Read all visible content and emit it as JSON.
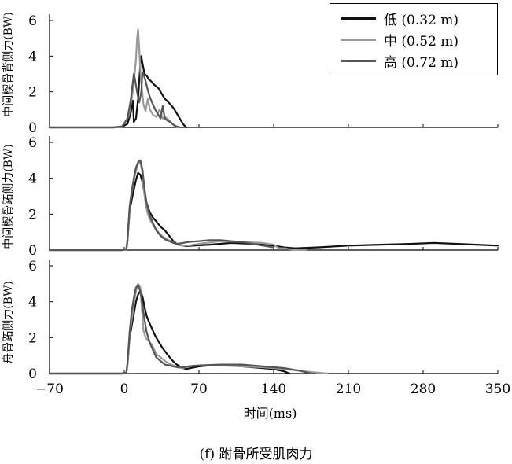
{
  "chart_data": [
    {
      "type": "line",
      "panel": "top",
      "ylabel": "中间楔骨背侧力(BW)",
      "xlim": [
        -70,
        350
      ],
      "ylim": [
        0,
        6
      ],
      "yticks": [
        0,
        2,
        4,
        6
      ],
      "series": [
        {
          "name": "低  (0.32 m)",
          "color": "#111111",
          "x": [
            -70,
            -10,
            -2,
            3,
            6,
            8,
            9,
            11,
            13,
            14,
            15,
            16,
            17,
            19,
            21,
            23,
            25,
            28,
            32,
            35,
            38,
            40,
            43,
            46,
            50,
            55,
            58
          ],
          "y": [
            0,
            0,
            0.05,
            0.2,
            0.8,
            1.5,
            0.3,
            0.5,
            1.6,
            2.6,
            3.5,
            4.0,
            3.6,
            3.0,
            2.9,
            2.7,
            2.6,
            2.4,
            2.2,
            1.9,
            1.6,
            1.5,
            1.3,
            1.1,
            0.7,
            0.2,
            0
          ]
        },
        {
          "name": "中  (0.52 m)",
          "color": "#9a9a9a",
          "x": [
            -70,
            -10,
            -2,
            4,
            7,
            9,
            11,
            12,
            13,
            14,
            15,
            16,
            18,
            20,
            22,
            24,
            27,
            30,
            33,
            36,
            38,
            40,
            42,
            45,
            50
          ],
          "y": [
            0,
            0,
            0.05,
            0.6,
            1.6,
            2.5,
            3.8,
            5.0,
            5.5,
            4.5,
            3.2,
            2.5,
            1.3,
            0.9,
            1.6,
            1.0,
            0.7,
            0.6,
            1.0,
            0.5,
            0.6,
            0.5,
            0.4,
            0.2,
            0
          ]
        },
        {
          "name": "高  (0.72 m)",
          "color": "#555555",
          "x": [
            -70,
            -10,
            -2,
            3,
            6,
            8,
            9,
            10,
            12,
            14,
            16,
            17,
            18,
            20,
            22,
            24,
            26,
            29,
            32,
            34,
            36,
            38,
            40,
            43,
            47,
            52
          ],
          "y": [
            0,
            0,
            0.05,
            0.5,
            1.5,
            2.5,
            3.0,
            2.7,
            2.0,
            1.4,
            2.0,
            3.1,
            3.0,
            2.6,
            2.1,
            1.7,
            1.4,
            1.0,
            0.7,
            0.5,
            1.2,
            0.5,
            0.4,
            0.3,
            0.1,
            0
          ]
        }
      ]
    },
    {
      "type": "line",
      "panel": "middle",
      "ylabel": "中间楔骨跖侧力(BW)",
      "xlim": [
        -70,
        350
      ],
      "ylim": [
        0,
        6
      ],
      "yticks": [
        0,
        2,
        4,
        6
      ],
      "series": [
        {
          "name": "低  (0.32 m)",
          "color": "#111111",
          "x": [
            -70,
            -2,
            2,
            3,
            5,
            8,
            11,
            13,
            15,
            17,
            19,
            21,
            24,
            27,
            30,
            34,
            38,
            42,
            46,
            50,
            55,
            58,
            65,
            80,
            100,
            120,
            140,
            150,
            160,
            180,
            210,
            240,
            270,
            290,
            310,
            330,
            350
          ],
          "y": [
            0,
            0,
            0.05,
            0.5,
            2.2,
            3.1,
            3.9,
            4.3,
            4.2,
            3.8,
            3.1,
            2.6,
            2.1,
            1.8,
            1.6,
            1.3,
            1.1,
            0.8,
            0.5,
            0.3,
            0.25,
            0.22,
            0.25,
            0.3,
            0.4,
            0.35,
            0.25,
            0.15,
            0.1,
            0.15,
            0.25,
            0.3,
            0.35,
            0.4,
            0.35,
            0.3,
            0.25
          ]
        },
        {
          "name": "中  (0.52 m)",
          "color": "#9a9a9a",
          "x": [
            -70,
            -2,
            2,
            3,
            5,
            7,
            9,
            11,
            13,
            15,
            17,
            18,
            20,
            22,
            25,
            28,
            32,
            35,
            40,
            45,
            50,
            55,
            60,
            70,
            90,
            110,
            130,
            140,
            145,
            150,
            155,
            160,
            170
          ],
          "y": [
            0,
            0,
            0.05,
            0.5,
            2.3,
            3.2,
            3.9,
            4.4,
            4.8,
            4.9,
            4.3,
            3.5,
            2.6,
            2.0,
            1.6,
            1.3,
            1.0,
            0.8,
            0.6,
            0.45,
            0.3,
            0.25,
            0.25,
            0.35,
            0.5,
            0.45,
            0.4,
            0.3,
            0.1,
            0.1,
            0.05,
            0.02,
            0
          ]
        },
        {
          "name": "高  (0.72 m)",
          "color": "#555555",
          "x": [
            -70,
            -2,
            2,
            3,
            5,
            7,
            9,
            11,
            13,
            15,
            17,
            19,
            21,
            24,
            27,
            30,
            34,
            38,
            42,
            46,
            50,
            55,
            60,
            70,
            80,
            90,
            100,
            110,
            120,
            130,
            140
          ],
          "y": [
            0,
            0,
            0.05,
            0.6,
            2.4,
            3.3,
            4.0,
            4.6,
            4.9,
            5.0,
            4.5,
            3.4,
            2.6,
            1.9,
            1.5,
            1.1,
            0.8,
            0.6,
            0.5,
            0.4,
            0.35,
            0.4,
            0.45,
            0.5,
            0.55,
            0.55,
            0.5,
            0.45,
            0.35,
            0.25,
            0.15
          ]
        }
      ]
    },
    {
      "type": "line",
      "panel": "bottom",
      "ylabel": "舟骨跖侧力(BW)",
      "xlim": [
        -70,
        350
      ],
      "ylim": [
        0,
        6
      ],
      "yticks": [
        0,
        2,
        4,
        6
      ],
      "xticks": [
        -70,
        0,
        70,
        140,
        210,
        280,
        350
      ],
      "series": [
        {
          "name": "低  (0.32 m)",
          "color": "#111111",
          "x": [
            -70,
            -2,
            2,
            3,
            5,
            8,
            11,
            13,
            15,
            17,
            19,
            21,
            23,
            26,
            29,
            32,
            36,
            40,
            44,
            48,
            52,
            55,
            58,
            62,
            70,
            80,
            100,
            120,
            140,
            150,
            155
          ],
          "y": [
            0,
            0,
            0.05,
            0.5,
            2.0,
            3.0,
            4.0,
            4.4,
            4.6,
            4.3,
            3.7,
            3.2,
            2.9,
            2.5,
            2.1,
            1.8,
            1.4,
            1.1,
            0.8,
            0.55,
            0.4,
            0.3,
            0.25,
            0.3,
            0.4,
            0.45,
            0.45,
            0.35,
            0.25,
            0.12,
            0
          ]
        },
        {
          "name": "中  (0.52 m)",
          "color": "#9a9a9a",
          "x": [
            -70,
            -2,
            2,
            3,
            5,
            7,
            9,
            11,
            13,
            15,
            16,
            17,
            18,
            20,
            23,
            26,
            30,
            34,
            38,
            42,
            46,
            50,
            55,
            60,
            70,
            90,
            110,
            130,
            150,
            170,
            190
          ],
          "y": [
            0,
            0,
            0.05,
            0.5,
            2.1,
            3.0,
            3.8,
            4.6,
            5.0,
            4.8,
            4.0,
            3.2,
            2.4,
            2.0,
            1.8,
            1.6,
            1.1,
            0.9,
            0.7,
            0.55,
            0.45,
            0.35,
            0.3,
            0.4,
            0.45,
            0.45,
            0.4,
            0.35,
            0.25,
            0.12,
            0
          ]
        },
        {
          "name": "高  (0.72 m)",
          "color": "#555555",
          "x": [
            -70,
            -2,
            2,
            3,
            5,
            7,
            9,
            11,
            13,
            15,
            17,
            19,
            21,
            24,
            27,
            30,
            34,
            38,
            42,
            46,
            50,
            55,
            60,
            70,
            90,
            110,
            130,
            150,
            165,
            175
          ],
          "y": [
            0,
            0,
            0.05,
            0.6,
            2.3,
            3.5,
            4.2,
            4.8,
            4.9,
            4.6,
            3.8,
            3.0,
            2.3,
            1.7,
            1.3,
            0.9,
            0.7,
            0.5,
            0.45,
            0.4,
            0.35,
            0.35,
            0.4,
            0.45,
            0.5,
            0.5,
            0.4,
            0.3,
            0.15,
            0
          ]
        }
      ]
    }
  ],
  "legend": {
    "items": [
      {
        "label": "低  (0.32 m)",
        "color": "#111111"
      },
      {
        "label": "中  (0.52 m)",
        "color": "#9a9a9a"
      },
      {
        "label": "高  (0.72 m)",
        "color": "#555555"
      }
    ]
  },
  "xlabel": "时间(ms)",
  "caption": "(f) 跗骨所受肌肉力"
}
